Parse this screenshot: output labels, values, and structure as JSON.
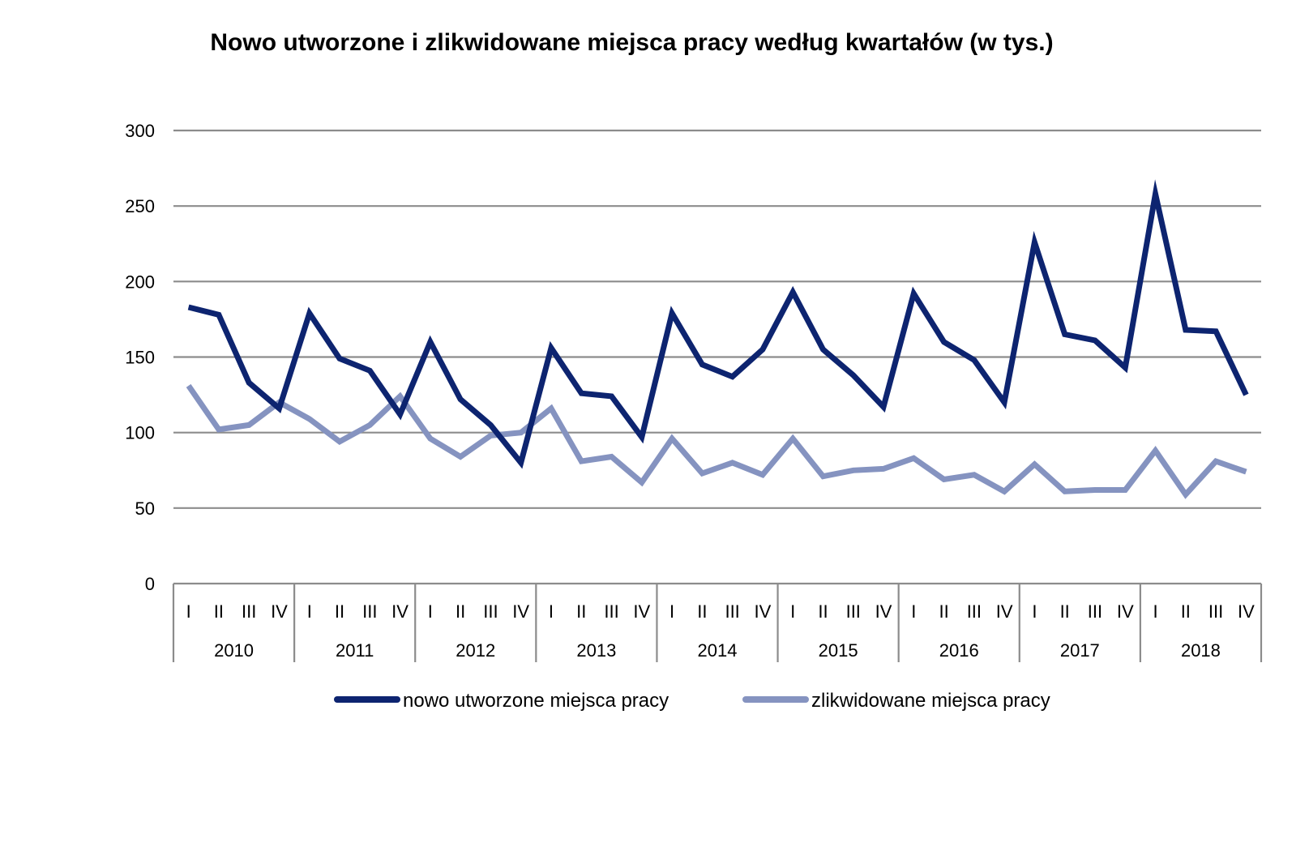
{
  "chart_data": {
    "type": "line",
    "title": "Nowo utworzone i zlikwidowane miejsca pracy według kwartałów (w tys.)",
    "xlabel": "",
    "ylabel": "",
    "ylim": [
      0,
      300
    ],
    "yticks": [
      0,
      50,
      100,
      150,
      200,
      250,
      300
    ],
    "grid": true,
    "legend_position": "bottom",
    "quarter_labels": [
      "I",
      "II",
      "III",
      "IV"
    ],
    "years": [
      "2010",
      "2011",
      "2012",
      "2013",
      "2014",
      "2015",
      "2016",
      "2017",
      "2018"
    ],
    "categories": [
      "2010 I",
      "2010 II",
      "2010 III",
      "2010 IV",
      "2011 I",
      "2011 II",
      "2011 III",
      "2011 IV",
      "2012 I",
      "2012 II",
      "2012 III",
      "2012 IV",
      "2013 I",
      "2013 II",
      "2013 III",
      "2013 IV",
      "2014 I",
      "2014 II",
      "2014 III",
      "2014 IV",
      "2015 I",
      "2015 II",
      "2015 III",
      "2015 IV",
      "2016 I",
      "2016 II",
      "2016 III",
      "2016 IV",
      "2017 I",
      "2017 II",
      "2017 III",
      "2017 IV",
      "2018 I",
      "2018 II",
      "2018 III",
      "2018 IV"
    ],
    "series": [
      {
        "name": "nowo utworzone miejsca pracy",
        "color": "#0d2470",
        "values": [
          183,
          178,
          133,
          116,
          179,
          149,
          141,
          112,
          160,
          122,
          105,
          80,
          156,
          126,
          124,
          97,
          179,
          145,
          137,
          155,
          193,
          155,
          138,
          117,
          192,
          160,
          148,
          120,
          226,
          165,
          161,
          143,
          258,
          168,
          167,
          125
        ]
      },
      {
        "name": "zlikwidowane miejsca pracy",
        "color": "#8593c0",
        "values": [
          131,
          102,
          105,
          120,
          109,
          94,
          105,
          124,
          96,
          84,
          98,
          100,
          116,
          81,
          84,
          67,
          96,
          73,
          80,
          72,
          96,
          71,
          75,
          76,
          83,
          69,
          72,
          61,
          79,
          61,
          62,
          62,
          88,
          59,
          81,
          74
        ]
      }
    ]
  }
}
